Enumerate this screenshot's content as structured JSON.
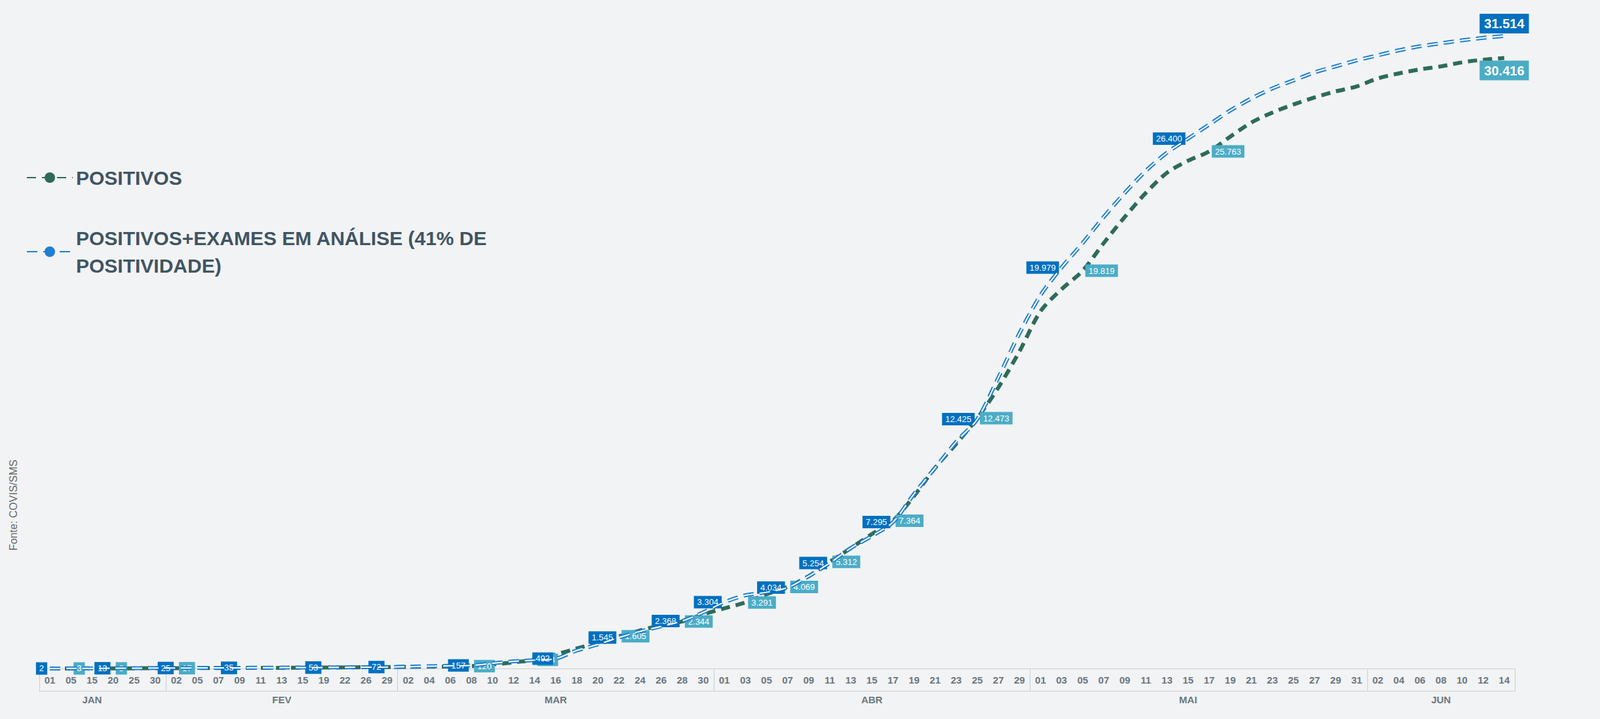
{
  "chart_data": {
    "type": "line",
    "source": "Fonte: COVIS/SMS",
    "categories": [
      "01",
      "05",
      "15",
      "20",
      "25",
      "30",
      "02",
      "05",
      "07",
      "09",
      "11",
      "13",
      "15",
      "19",
      "22",
      "26",
      "29",
      "02",
      "04",
      "06",
      "08",
      "10",
      "12",
      "14",
      "16",
      "18",
      "20",
      "22",
      "24",
      "26",
      "28",
      "30",
      "01",
      "03",
      "05",
      "07",
      "09",
      "11",
      "13",
      "15",
      "17",
      "19",
      "21",
      "23",
      "25",
      "27",
      "29",
      "01",
      "03",
      "05",
      "07",
      "09",
      "11",
      "13",
      "15",
      "17",
      "19",
      "21",
      "23",
      "25",
      "27",
      "29",
      "31",
      "02",
      "04",
      "06",
      "08",
      "10",
      "12",
      "14"
    ],
    "x_groups": [
      "JAN",
      "JAN",
      "JAN",
      "JAN",
      "JAN",
      "JAN",
      "FEV",
      "FEV",
      "FEV",
      "FEV",
      "FEV",
      "FEV",
      "FEV",
      "FEV",
      "FEV",
      "FEV",
      "FEV",
      "MAR",
      "MAR",
      "MAR",
      "MAR",
      "MAR",
      "MAR",
      "MAR",
      "MAR",
      "MAR",
      "MAR",
      "MAR",
      "MAR",
      "MAR",
      "MAR",
      "MAR",
      "ABR",
      "ABR",
      "ABR",
      "ABR",
      "ABR",
      "ABR",
      "ABR",
      "ABR",
      "ABR",
      "ABR",
      "ABR",
      "ABR",
      "ABR",
      "ABR",
      "ABR",
      "MAI",
      "MAI",
      "MAI",
      "MAI",
      "MAI",
      "MAI",
      "MAI",
      "MAI",
      "MAI",
      "MAI",
      "MAI",
      "MAI",
      "MAI",
      "MAI",
      "MAI",
      "MAI",
      "JUN",
      "JUN",
      "JUN",
      "JUN",
      "JUN",
      "JUN",
      "JUN"
    ],
    "ylim": [
      0,
      32000
    ],
    "tick_labels": "x",
    "grid": false,
    "legend": "top-left",
    "data_labels": true,
    "series": [
      {
        "name": "POSITIVOS",
        "color": "#2e6b5a",
        "line_style": "dashed",
        "values": [
          2,
          3,
          5,
          8,
          12,
          15,
          17,
          21,
          25,
          28,
          32,
          36,
          40,
          48,
          56,
          65,
          75,
          85,
          95,
          105,
          120,
          200,
          310,
          433,
          700,
          1000,
          1300,
          1605,
          1900,
          2150,
          2344,
          2700,
          3000,
          3291,
          3700,
          4069,
          4600,
          5312,
          6000,
          6700,
          7364,
          8600,
          10000,
          11200,
          12473,
          14000,
          15800,
          17800,
          18900,
          19819,
          21200,
          22500,
          23700,
          24700,
          25300,
          25763,
          26500,
          27200,
          27700,
          28100,
          28450,
          28750,
          29000,
          29400,
          29650,
          29850,
          30000,
          30200,
          30330,
          30416
        ],
        "value_labels": [
          null,
          "3",
          null,
          "8",
          null,
          null,
          "17",
          null,
          "25",
          null,
          null,
          null,
          "40",
          null,
          null,
          null,
          null,
          null,
          null,
          null,
          "120",
          null,
          null,
          "433",
          null,
          null,
          null,
          "1.605",
          null,
          null,
          "2.344",
          null,
          null,
          "3.291",
          null,
          "4.069",
          null,
          "5.312",
          null,
          null,
          "7.364",
          null,
          null,
          null,
          "12.473",
          null,
          null,
          null,
          null,
          "19.819",
          null,
          null,
          null,
          null,
          null,
          "25.763",
          null,
          null,
          null,
          null,
          null,
          null,
          null,
          null,
          null,
          null,
          null,
          null,
          null,
          "30.416"
        ]
      },
      {
        "name": "POSITIVOS+EXAMES EM ANÁLISE (41% DE POSITIVIDADE)",
        "color": "#1e7fd0",
        "line_style": "dashed",
        "values": [
          2,
          5,
          9,
          13,
          18,
          22,
          25,
          29,
          32,
          35,
          40,
          45,
          49,
          53,
          60,
          66,
          72,
          90,
          115,
          135,
          157,
          260,
          360,
          420,
          492,
          900,
          1200,
          1545,
          1850,
          2100,
          2368,
          2800,
          3304,
          3650,
          3800,
          4034,
          4600,
          5254,
          6000,
          6600,
          7295,
          8700,
          10000,
          11300,
          12425,
          14500,
          16700,
          18600,
          19979,
          21200,
          22500,
          23700,
          24800,
          25700,
          26400,
          27100,
          27800,
          28400,
          28900,
          29300,
          29700,
          30000,
          30300,
          30550,
          30800,
          31000,
          31150,
          31300,
          31420,
          31514
        ],
        "value_labels": [
          "2",
          null,
          null,
          "13",
          null,
          null,
          "25",
          null,
          null,
          "35",
          null,
          null,
          null,
          "53",
          null,
          null,
          "72",
          null,
          null,
          null,
          "157",
          null,
          null,
          null,
          "492",
          null,
          null,
          "1.545",
          null,
          null,
          "2.368",
          null,
          "3.304",
          null,
          null,
          "4.034",
          null,
          "5.254",
          null,
          null,
          "7.295",
          null,
          null,
          null,
          "12.425",
          null,
          null,
          null,
          "19.979",
          null,
          null,
          null,
          null,
          null,
          "26.400",
          null,
          null,
          null,
          null,
          null,
          null,
          null,
          null,
          null,
          null,
          null,
          null,
          null,
          null,
          "31.514"
        ]
      }
    ]
  }
}
